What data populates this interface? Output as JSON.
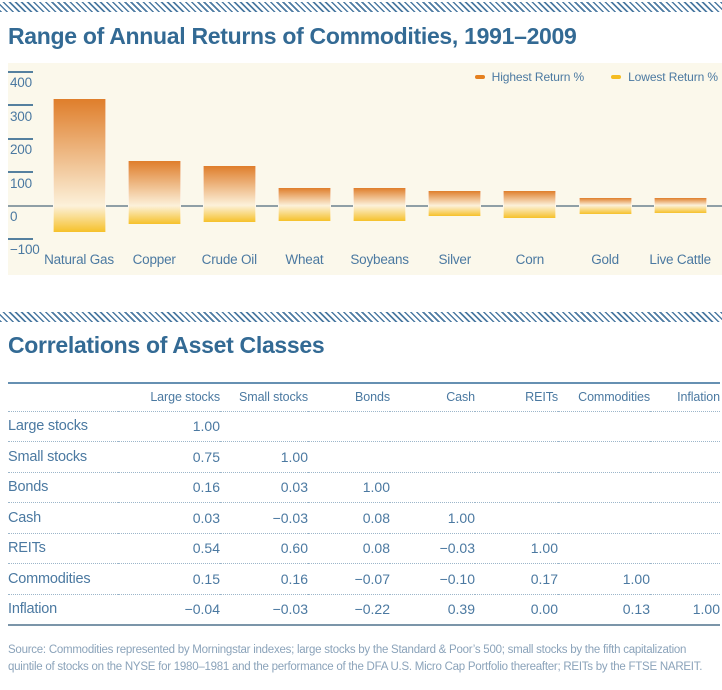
{
  "theme": {
    "heading_color": "#336a94",
    "text_color": "#4b79a1",
    "hatch_color": "#4d7ba3",
    "source_color": "#8ba3ba"
  },
  "chart_data": [
    {
      "type": "bar",
      "subtype": "floating-range-bars",
      "title": "Range of Annual Returns of Commodities, 1991–2009",
      "categories": [
        "Natural Gas",
        "Copper",
        "Crude Oil",
        "Wheat",
        "Soybeans",
        "Silver",
        "Corn",
        "Gold",
        "Live Cattle"
      ],
      "series": [
        {
          "name": "Highest Return %",
          "color": "#e5801f",
          "values": [
            320,
            133,
            118,
            53,
            52,
            44,
            43,
            22,
            22
          ]
        },
        {
          "name": "Lowest Return %",
          "color": "#f5bc20",
          "values": [
            -78,
            -54,
            -50,
            -46,
            -46,
            -31,
            -37,
            -26,
            -23
          ]
        }
      ],
      "axis": {
        "ylim": [
          -100,
          400
        ],
        "ticks": [
          {
            "value": 400,
            "label": "400"
          },
          {
            "value": 300,
            "label": "300"
          },
          {
            "value": 200,
            "label": "200"
          },
          {
            "value": 100,
            "label": "100"
          },
          {
            "value": 0,
            "label": "0"
          },
          {
            "value": -100,
            "label": "−100"
          }
        ]
      },
      "legend_position": "top-right",
      "grid": false,
      "colors": {
        "background": "#fbf8eb",
        "bar_top": "#df7e2b",
        "bar_zero": "#fcf1da",
        "bar_bottom": "#f6c12a",
        "zero_line": "#8f9fa6"
      }
    },
    {
      "type": "table",
      "title": "Correlations of Asset Classes",
      "columns": [
        "Large stocks",
        "Small stocks",
        "Bonds",
        "Cash",
        "REITs",
        "Commodities",
        "Inflation"
      ],
      "rows": [
        {
          "label": "Large stocks",
          "values": [
            "1.00"
          ]
        },
        {
          "label": "Small stocks",
          "values": [
            "0.75",
            "1.00"
          ]
        },
        {
          "label": "Bonds",
          "values": [
            "0.16",
            "0.03",
            "1.00"
          ]
        },
        {
          "label": "Cash",
          "values": [
            "0.03",
            "−0.03",
            "0.08",
            "1.00"
          ]
        },
        {
          "label": "REITs",
          "values": [
            "0.54",
            "0.60",
            "0.08",
            "−0.03",
            "1.00"
          ]
        },
        {
          "label": "Commodities",
          "values": [
            "0.15",
            "0.16",
            "−0.07",
            "−0.10",
            "0.17",
            "1.00"
          ]
        },
        {
          "label": "Inflation",
          "values": [
            "−0.04",
            "−0.03",
            "−0.22",
            "0.39",
            "0.00",
            "0.13",
            "1.00"
          ]
        }
      ]
    }
  ],
  "source": {
    "line1": "Source: Commodities represented by Morningstar indexes; large stocks by the Standard & Poor’s 500; small stocks by the fifth capitalization",
    "line2": "quintile of stocks on the NYSE for 1980–1981 and the performance of the DFA U.S. Micro Cap Portfolio thereafter; REITs by the FTSE NAREIT."
  }
}
